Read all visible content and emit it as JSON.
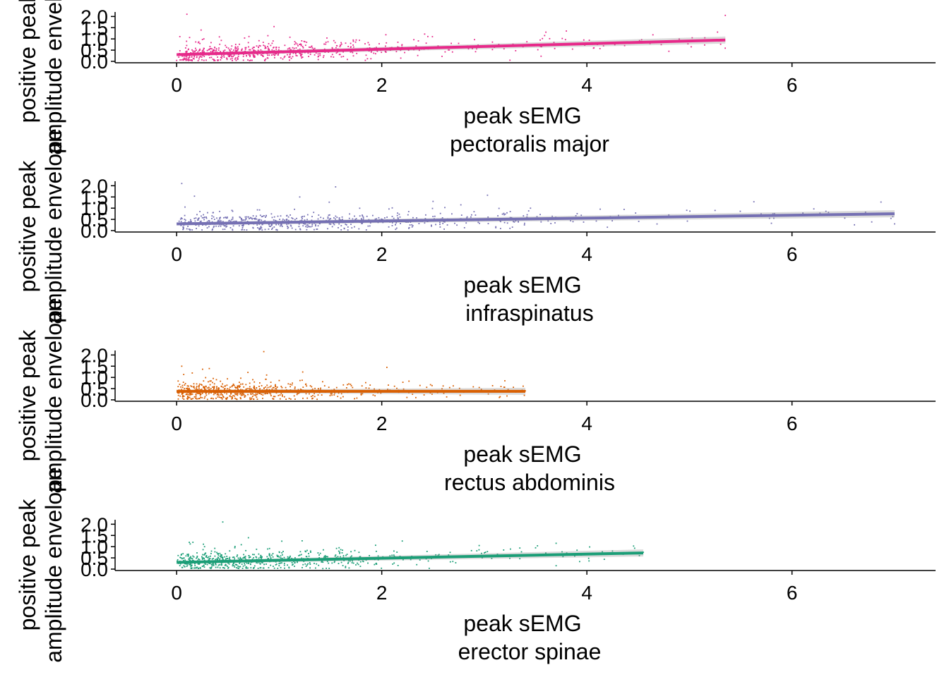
{
  "chart_data": [
    {
      "type": "scatter",
      "muscle": "pectoralis major",
      "xlabel_line1": "peak sEMG",
      "xlabel_line2": "pectoralis major",
      "ylabel_line1": "positive peak",
      "ylabel_line2": "amplitude envelope",
      "xlim": [
        -0.6,
        7.4
      ],
      "ylim": [
        0.0,
        2.2
      ],
      "xticks": [
        0,
        2,
        4,
        6
      ],
      "yticks": [
        0.0,
        0.5,
        1.0,
        1.5,
        2.0
      ],
      "color": "#E7298A",
      "points_x_range": [
        0.0,
        5.35
      ],
      "fit": {
        "x": [
          0.0,
          5.35
        ],
        "y": [
          0.3,
          0.95
        ]
      },
      "n_points": 650,
      "outliers": [
        [
          0.1,
          2.1
        ],
        [
          0.95,
          1.55
        ],
        [
          3.6,
          1.3
        ],
        [
          3.8,
          1.35
        ],
        [
          5.15,
          1.05
        ],
        [
          5.35,
          2.05
        ],
        [
          4.8,
          0.45
        ],
        [
          3.25,
          0.05
        ]
      ]
    },
    {
      "type": "scatter",
      "muscle": "infraspinatus",
      "xlabel_line1": "peak sEMG",
      "xlabel_line2": "infraspinatus",
      "ylabel_line1": "positive peak",
      "ylabel_line2": "amplitude envelope",
      "xlim": [
        -0.6,
        7.4
      ],
      "ylim": [
        0.0,
        2.2
      ],
      "xticks": [
        0,
        2,
        4,
        6
      ],
      "yticks": [
        0.0,
        0.5,
        1.0,
        1.5,
        2.0
      ],
      "color": "#7570B3",
      "points_x_range": [
        0.0,
        7.0
      ],
      "fit": {
        "x": [
          0.0,
          7.0
        ],
        "y": [
          0.3,
          0.75
        ]
      },
      "n_points": 650,
      "outliers": [
        [
          0.05,
          2.1
        ],
        [
          1.55,
          1.95
        ],
        [
          1.2,
          1.5
        ],
        [
          2.5,
          1.3
        ],
        [
          3.45,
          1.0
        ],
        [
          5.25,
          0.9
        ],
        [
          7.0,
          0.3
        ],
        [
          4.2,
          0.15
        ],
        [
          3.25,
          0.1
        ]
      ]
    },
    {
      "type": "scatter",
      "muscle": "rectus abdominis",
      "xlabel_line1": "peak sEMG",
      "xlabel_line2": "rectus abdominis",
      "ylabel_line1": "positive peak",
      "ylabel_line2": "amplitude envelope",
      "xlim": [
        -0.6,
        7.4
      ],
      "ylim": [
        0.0,
        2.2
      ],
      "xticks": [
        0,
        2,
        4,
        6
      ],
      "yticks": [
        0.0,
        0.5,
        1.0,
        1.5,
        2.0
      ],
      "color": "#D95F02",
      "points_x_range": [
        0.0,
        3.4
      ],
      "fit": {
        "x": [
          0.0,
          3.4
        ],
        "y": [
          0.38,
          0.38
        ]
      },
      "n_points": 650,
      "outliers": [
        [
          0.85,
          2.15
        ],
        [
          2.05,
          1.45
        ],
        [
          0.05,
          1.5
        ],
        [
          3.2,
          0.85
        ],
        [
          3.4,
          0.4
        ],
        [
          2.3,
          0.25
        ]
      ]
    },
    {
      "type": "scatter",
      "muscle": "erector spinae",
      "xlabel_line1": "peak sEMG",
      "xlabel_line2": "erector spinae",
      "ylabel_line1": "positive peak",
      "ylabel_line2": "amplitude envelope",
      "xlim": [
        -0.6,
        7.4
      ],
      "ylim": [
        0.0,
        2.2
      ],
      "xticks": [
        0,
        2,
        4,
        6
      ],
      "yticks": [
        0.0,
        0.5,
        1.0,
        1.5,
        2.0
      ],
      "color": "#1B9E77",
      "points_x_range": [
        0.0,
        4.55
      ],
      "fit": {
        "x": [
          0.0,
          4.55
        ],
        "y": [
          0.3,
          0.72
        ]
      },
      "n_points": 650,
      "outliers": [
        [
          0.45,
          2.1
        ],
        [
          0.7,
          1.4
        ],
        [
          3.7,
          1.15
        ],
        [
          2.2,
          1.25
        ],
        [
          2.95,
          1.05
        ],
        [
          3.5,
          0.95
        ],
        [
          4.55,
          0.75
        ],
        [
          3.7,
          0.15
        ]
      ]
    }
  ]
}
